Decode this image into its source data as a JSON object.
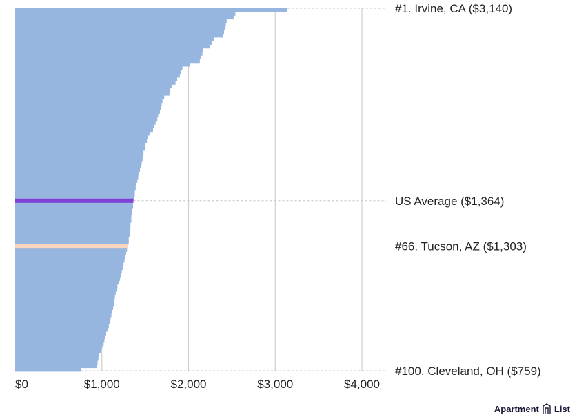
{
  "chart_data": {
    "type": "bar",
    "orientation": "horizontal",
    "title": "",
    "xlabel": "",
    "ylabel": "",
    "xlim": [
      0,
      4000
    ],
    "xticks": [
      0,
      1000,
      2000,
      3000,
      4000
    ],
    "xtick_labels": [
      "$0",
      "$1,000",
      "$2,000",
      "$3,000",
      "$4,000"
    ],
    "grid": true,
    "sort": "descending",
    "count": 100,
    "values": [
      3140,
      2540,
      2520,
      2440,
      2430,
      2420,
      2410,
      2400,
      2290,
      2270,
      2250,
      2170,
      2160,
      2140,
      2130,
      2020,
      1930,
      1910,
      1900,
      1870,
      1850,
      1810,
      1790,
      1780,
      1720,
      1700,
      1690,
      1680,
      1670,
      1650,
      1640,
      1620,
      1600,
      1590,
      1550,
      1530,
      1520,
      1500,
      1500,
      1480,
      1480,
      1470,
      1460,
      1450,
      1440,
      1430,
      1420,
      1410,
      1400,
      1390,
      1380,
      1380,
      1370,
      1360,
      1360,
      1350,
      1350,
      1340,
      1340,
      1330,
      1330,
      1320,
      1320,
      1310,
      1310,
      1303,
      1290,
      1280,
      1270,
      1260,
      1250,
      1240,
      1230,
      1220,
      1210,
      1200,
      1180,
      1170,
      1160,
      1150,
      1140,
      1140,
      1130,
      1120,
      1110,
      1100,
      1090,
      1080,
      1070,
      1050,
      1040,
      1030,
      1020,
      1000,
      990,
      970,
      960,
      950,
      940,
      759
    ],
    "highlights": [
      {
        "index": 65,
        "color": "#f7d5bf"
      }
    ],
    "reference_line": {
      "value": 1364,
      "color": "#8040d8"
    },
    "bar_color": "#97b6df",
    "annotations": [
      {
        "text": "#1. Irvine, CA ($3,140)",
        "index": 0
      },
      {
        "text": "US Average ($1,364)",
        "ref": "average"
      },
      {
        "text": "#66. Tucson, AZ ($1,303)",
        "index": 65
      },
      {
        "text": "#100. Cleveland, OH ($759)",
        "index": 99
      }
    ]
  },
  "brand": {
    "name": "Apartment",
    "name2": "List"
  }
}
